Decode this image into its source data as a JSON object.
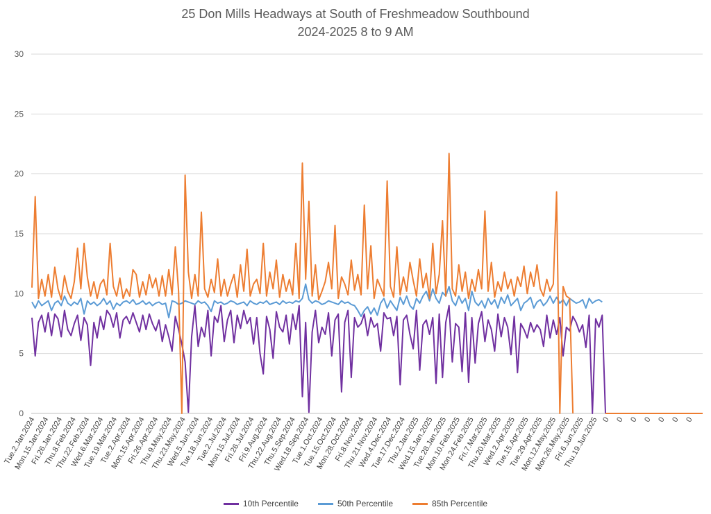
{
  "chart_data": {
    "type": "line",
    "title": "25 Don Mills Headways at South of Freshmeadow Southbound",
    "subtitle": "2024-2025 8 to 9 AM",
    "xlabel": "",
    "ylabel": "",
    "ylim": [
      0,
      30
    ],
    "yticks": [
      0,
      5,
      10,
      15,
      20,
      25,
      30
    ],
    "grid": true,
    "legend_position": "bottom",
    "x_tick_labels": [
      "Tue.2.Jan.2024",
      "Mon.15.Jan.2024",
      "Fri.26.Jan.2024",
      "Thu.8.Feb.2024",
      "Thu.22.Feb.2024",
      "Wed.6.Mar.2024",
      "Tue.19.Mar.2024",
      "Tue.2.Apr.2024",
      "Mon.15.Apr.2024",
      "Fri.26.Apr.2024",
      "Thu.9.May.2024",
      "Thu.23.May.2024",
      "Wed.5.Jun.2024",
      "Tue.18.Jun.2024",
      "Tue.2.Jul.2024",
      "Mon.15.Jul.2024",
      "Fri.26.Jul.2024",
      "Fri.9.Aug.2024",
      "Thu.22.Aug.2024",
      "Thu.5.Sep.2024",
      "Wed.18.Sep.2024",
      "Tue.1.Oct.2024",
      "Tue.15.Oct.2024",
      "Mon.28.Oct.2024",
      "Fri.8.Nov.2024",
      "Thu.21.Nov.2024",
      "Wed.4.Dec.2024",
      "Tue.17.Dec.2024",
      "Thu.2.Jan.2025",
      "Wed.15.Jan.2025",
      "Tue.28.Jan.2025",
      "Mon.10.Feb.2025",
      "Mon.24.Feb.2025",
      "Fri.7.Mar.2025",
      "Thu.20.Mar.2025",
      "Wed.2.Apr.2025",
      "Tue.15.Apr.2025",
      "Tue.29.Apr.2025",
      "Mon.12.May.2025",
      "Mon.26.May.2025",
      "Fri.6.Jun.2025",
      "Thu.19.Jun.2025",
      "0",
      "0",
      "0",
      "0",
      "0",
      "0",
      "0"
    ],
    "series": [
      {
        "name": "10th Percentile",
        "color": "#7030A0",
        "values": [
          8.0,
          4.8,
          7.6,
          8.2,
          6.8,
          8.4,
          6.5,
          8.3,
          7.9,
          6.4,
          8.6,
          7.0,
          6.5,
          7.5,
          8.2,
          6.1,
          8.0,
          7.4,
          4.0,
          7.6,
          6.3,
          8.1,
          7.0,
          8.6,
          8.2,
          7.2,
          8.4,
          6.3,
          7.8,
          8.1,
          7.5,
          8.4,
          7.6,
          6.8,
          8.2,
          7.0,
          8.3,
          7.5,
          6.9,
          7.8,
          6.0,
          7.4,
          6.4,
          5.2,
          8.1,
          7.0,
          5.8,
          4.3,
          0.1,
          6.4,
          9.0,
          5.6,
          7.2,
          6.4,
          8.6,
          4.8,
          8.1,
          7.6,
          9.0,
          6.0,
          7.8,
          8.6,
          5.9,
          8.2,
          7.1,
          8.6,
          7.5,
          8.0,
          5.8,
          8.0,
          5.0,
          3.3,
          8.1,
          7.0,
          4.6,
          8.5,
          7.2,
          6.8,
          8.2,
          5.8,
          8.3,
          7.0,
          9.0,
          1.4,
          7.6,
          0.1,
          6.8,
          8.6,
          5.9,
          7.2,
          6.6,
          8.4,
          4.8,
          7.8,
          8.3,
          1.8,
          7.6,
          8.6,
          3.0,
          8.0,
          7.2,
          7.5,
          8.3,
          6.5,
          8.0,
          7.2,
          7.5,
          5.2,
          8.4,
          7.9,
          8.0,
          6.5,
          8.1,
          2.4,
          7.8,
          8.2,
          6.6,
          5.4,
          8.6,
          3.6,
          7.4,
          7.8,
          6.6,
          8.0,
          2.5,
          8.3,
          3.0,
          7.6,
          9.0,
          4.3,
          7.5,
          7.2,
          3.5,
          8.4,
          2.6,
          8.0,
          4.2,
          7.5,
          8.5,
          6.0,
          7.8,
          7.0,
          5.2,
          8.3,
          6.4,
          8.0,
          7.2,
          4.9,
          8.1,
          3.4,
          7.5,
          7.0,
          6.3,
          7.6,
          6.8,
          7.4,
          7.0,
          5.6,
          8.2,
          6.3,
          7.8,
          6.6,
          8.0,
          4.8,
          7.2,
          6.9,
          8.1,
          7.6,
          6.8,
          7.4,
          5.5,
          8.2,
          0.0,
          7.9,
          7.2,
          8.2,
          0.0
        ]
      },
      {
        "name": "50th Percentile",
        "color": "#5B9BD5",
        "values": [
          9.3,
          8.8,
          9.4,
          9.0,
          9.2,
          9.4,
          8.6,
          9.2,
          9.4,
          9.0,
          9.8,
          9.2,
          9.0,
          9.3,
          9.1,
          9.6,
          8.3,
          9.4,
          9.1,
          9.3,
          9.0,
          9.2,
          9.6,
          9.1,
          9.4,
          8.7,
          9.2,
          9.0,
          9.3,
          9.4,
          9.2,
          9.5,
          9.1,
          9.2,
          9.4,
          9.1,
          9.3,
          9.0,
          9.2,
          9.3,
          9.1,
          9.2,
          8.0,
          9.4,
          9.3,
          9.1,
          9.2,
          9.4,
          9.3,
          9.2,
          9.1,
          9.4,
          9.2,
          9.3,
          9.0,
          8.5,
          9.4,
          9.2,
          9.3,
          9.1,
          9.2,
          9.4,
          9.3,
          9.1,
          9.2,
          9.3,
          9.0,
          9.4,
          9.2,
          9.1,
          9.3,
          9.2,
          9.4,
          9.1,
          9.2,
          9.3,
          9.1,
          9.4,
          9.2,
          9.3,
          9.2,
          9.4,
          9.3,
          9.6,
          10.8,
          9.5,
          9.2,
          9.4,
          9.3,
          9.1,
          9.2,
          9.4,
          9.3,
          9.2,
          9.1,
          9.4,
          9.2,
          9.3,
          9.1,
          9.0,
          8.6,
          8.1,
          8.6,
          8.9,
          8.3,
          8.8,
          8.2,
          9.2,
          9.6,
          8.8,
          9.4,
          9.0,
          8.6,
          9.7,
          9.1,
          9.8,
          9.0,
          8.7,
          9.6,
          9.2,
          9.8,
          10.2,
          9.4,
          10.4,
          9.6,
          9.2,
          10.1,
          9.8,
          10.6,
          9.4,
          9.0,
          9.8,
          9.2,
          9.6,
          8.6,
          10.2,
          9.3,
          9.0,
          9.4,
          8.8,
          9.6,
          9.1,
          9.5,
          8.8,
          9.7,
          9.2,
          9.9,
          9.0,
          9.3,
          9.6,
          8.6,
          9.2,
          9.4,
          9.7,
          8.8,
          9.3,
          9.5,
          9.0,
          9.3,
          9.8,
          9.2,
          9.7,
          9.2,
          9.5,
          9.0,
          9.6,
          9.4,
          9.2,
          9.3,
          9.5,
          8.8,
          9.6,
          9.2,
          9.4,
          9.5,
          9.3
        ]
      },
      {
        "name": "85th Percentile",
        "color": "#ED7D31",
        "values": [
          10.5,
          18.1,
          9.6,
          11.2,
          9.8,
          11.6,
          9.7,
          12.2,
          10.4,
          9.5,
          11.5,
          10.2,
          9.6,
          11.0,
          13.8,
          10.4,
          14.2,
          11.4,
          9.8,
          11.0,
          9.6,
          10.8,
          11.2,
          9.9,
          14.2,
          10.6,
          9.8,
          11.3,
          9.6,
          10.4,
          9.8,
          12.0,
          11.6,
          9.7,
          11.0,
          9.9,
          11.6,
          10.5,
          11.3,
          9.8,
          11.5,
          9.8,
          12.0,
          9.9,
          13.9,
          10.2,
          0.0,
          19.9,
          11.8,
          9.6,
          11.6,
          9.8,
          16.8,
          10.4,
          9.7,
          11.2,
          10.1,
          12.9,
          9.8,
          11.2,
          9.8,
          10.8,
          11.6,
          9.7,
          12.4,
          10.2,
          13.7,
          9.8,
          10.8,
          11.2,
          10.0,
          14.2,
          9.8,
          11.8,
          10.4,
          12.8,
          9.7,
          11.6,
          10.2,
          11.2,
          9.9,
          14.2,
          9.6,
          20.9,
          11.2,
          17.7,
          9.8,
          12.4,
          9.5,
          10.2,
          11.0,
          12.6,
          10.4,
          15.7,
          9.6,
          11.4,
          10.8,
          9.9,
          12.8,
          10.3,
          11.6,
          9.9,
          17.4,
          10.4,
          14.0,
          9.6,
          11.2,
          10.5,
          9.8,
          19.4,
          10.6,
          9.7,
          13.9,
          9.9,
          11.4,
          10.2,
          12.6,
          11.1,
          9.8,
          12.9,
          10.5,
          11.7,
          9.6,
          14.2,
          10.0,
          11.6,
          16.1,
          9.8,
          21.7,
          10.4,
          9.8,
          12.4,
          10.2,
          11.8,
          9.6,
          11.2,
          10.2,
          12.0,
          10.4,
          16.9,
          10.2,
          12.6,
          9.7,
          11.0,
          10.2,
          11.8,
          10.4,
          11.2,
          9.8,
          11.4,
          10.6,
          12.3,
          10.0,
          11.8,
          10.6,
          12.4,
          10.4,
          9.8,
          11.2,
          10.2,
          10.8,
          18.5,
          0.0,
          10.6,
          9.8,
          9.6,
          0.0
        ]
      }
    ]
  }
}
